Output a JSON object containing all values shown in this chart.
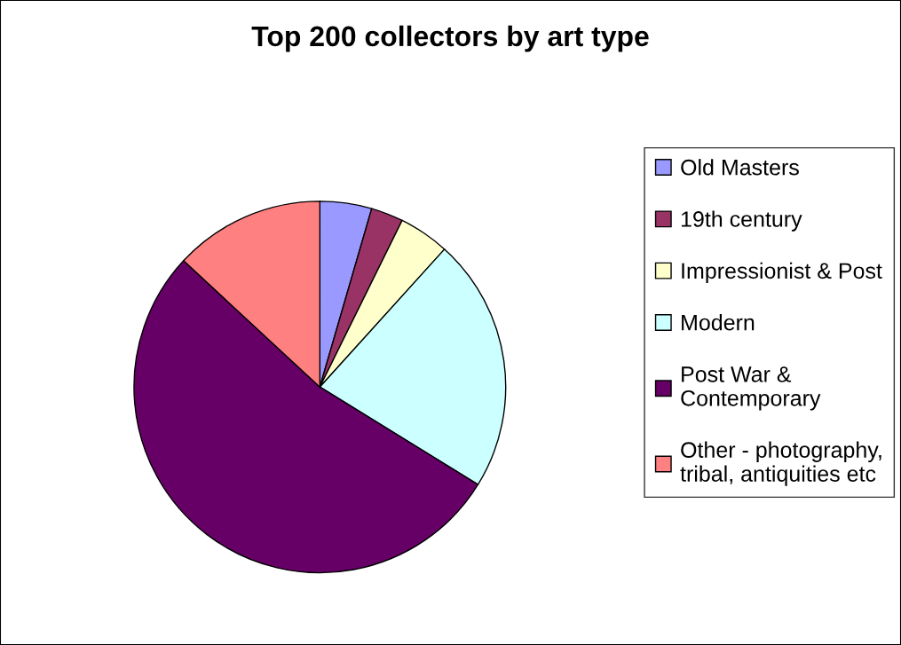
{
  "chart_data": {
    "type": "pie",
    "title": "Top 200 collectors by art type",
    "categories": [
      "Old Masters",
      "19th century",
      "Impressionist & Post",
      "Modern",
      "Post War &\nContemporary",
      "Other - photography,\ntribal, antiquities etc"
    ],
    "values": [
      4.5,
      2.8,
      4.4,
      22.1,
      53.1,
      13.1
    ],
    "colors": [
      "#9999ff",
      "#993366",
      "#ffffcc",
      "#ccffff",
      "#660066",
      "#ff8080"
    ],
    "legend": "right"
  }
}
